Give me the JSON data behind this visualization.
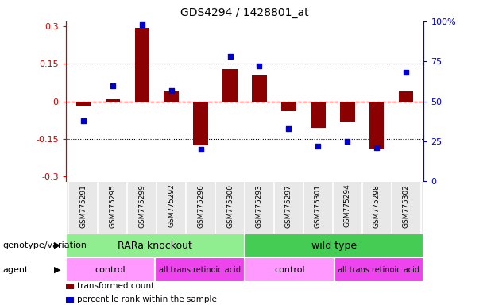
{
  "title": "GDS4294 / 1428801_at",
  "samples": [
    "GSM775291",
    "GSM775295",
    "GSM775299",
    "GSM775292",
    "GSM775296",
    "GSM775300",
    "GSM775293",
    "GSM775297",
    "GSM775301",
    "GSM775294",
    "GSM775298",
    "GSM775302"
  ],
  "bar_values": [
    -0.02,
    0.01,
    0.295,
    0.04,
    -0.175,
    0.13,
    0.105,
    -0.04,
    -0.105,
    -0.08,
    -0.19,
    0.04
  ],
  "scatter_values": [
    38,
    60,
    98,
    57,
    20,
    78,
    72,
    33,
    22,
    25,
    21,
    68
  ],
  "bar_color": "#8B0000",
  "scatter_color": "#0000CD",
  "ylim_left": [
    -0.32,
    0.32
  ],
  "ylim_right": [
    0,
    100
  ],
  "yticks_left": [
    -0.3,
    -0.15,
    0.0,
    0.15,
    0.3
  ],
  "yticks_right": [
    0,
    25,
    50,
    75,
    100
  ],
  "ytick_labels_left": [
    "-0.3",
    "-0.15",
    "0",
    "0.15",
    "0.3"
  ],
  "ytick_labels_right": [
    "0",
    "25",
    "50",
    "75",
    "100%"
  ],
  "hline_value": 0.0,
  "dotted_lines": [
    -0.15,
    0.15
  ],
  "genotype_groups": [
    {
      "label": "RARa knockout",
      "start": 0,
      "end": 6,
      "color": "#90EE90"
    },
    {
      "label": "wild type",
      "start": 6,
      "end": 12,
      "color": "#44CC55"
    }
  ],
  "agent_groups": [
    {
      "label": "control",
      "start": 0,
      "end": 3,
      "color": "#FF99FF"
    },
    {
      "label": "all trans retinoic acid",
      "start": 3,
      "end": 6,
      "color": "#EE44EE"
    },
    {
      "label": "control",
      "start": 6,
      "end": 9,
      "color": "#FF99FF"
    },
    {
      "label": "all trans retinoic acid",
      "start": 9,
      "end": 12,
      "color": "#EE44EE"
    }
  ],
  "genotype_label": "genotype/variation",
  "agent_label": "agent",
  "legend_items": [
    {
      "color": "#8B0000",
      "label": "transformed count"
    },
    {
      "color": "#0000CD",
      "label": "percentile rank within the sample"
    }
  ],
  "left_axis_color": "#CC0000",
  "right_axis_color": "#0000CC"
}
